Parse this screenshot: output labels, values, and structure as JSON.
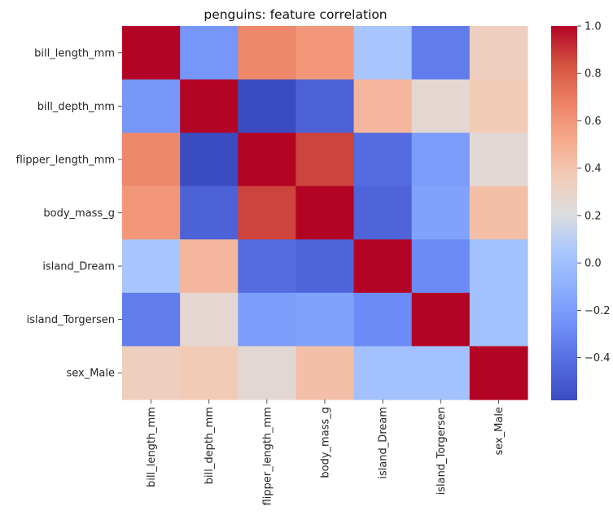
{
  "chart_data": {
    "type": "heatmap",
    "title": "penguins: feature correlation",
    "x_labels": [
      "bill_length_mm",
      "bill_depth_mm",
      "flipper_length_mm",
      "body_mass_g",
      "island_Dream",
      "island_Torgersen",
      "sex_Male"
    ],
    "y_labels": [
      "bill_length_mm",
      "bill_depth_mm",
      "flipper_length_mm",
      "body_mass_g",
      "island_Dream",
      "island_Torgersen",
      "sex_Male"
    ],
    "values": [
      [
        1.0,
        -0.23,
        0.65,
        0.59,
        0.04,
        -0.35,
        0.34
      ],
      [
        -0.23,
        1.0,
        -0.58,
        -0.47,
        0.46,
        0.26,
        0.37
      ],
      [
        0.65,
        -0.58,
        1.0,
        0.87,
        -0.42,
        -0.2,
        0.25
      ],
      [
        0.59,
        -0.47,
        0.87,
        1.0,
        -0.46,
        -0.17,
        0.42
      ],
      [
        0.04,
        0.46,
        -0.42,
        -0.46,
        1.0,
        -0.28,
        0.01
      ],
      [
        -0.35,
        0.26,
        -0.2,
        -0.17,
        -0.28,
        1.0,
        0.01
      ],
      [
        0.34,
        0.37,
        0.25,
        0.42,
        0.01,
        0.01,
        1.0
      ]
    ],
    "colormap": "coolwarm",
    "vmin": -0.58,
    "vmax": 1.0,
    "colorbar_ticks": [
      "1.0",
      "0.8",
      "0.6",
      "0.4",
      "0.2",
      "0.0",
      "−0.2",
      "−0.4"
    ],
    "colorbar_tick_values": [
      1.0,
      0.8,
      0.6,
      0.4,
      0.2,
      0.0,
      -0.2,
      -0.4
    ]
  }
}
